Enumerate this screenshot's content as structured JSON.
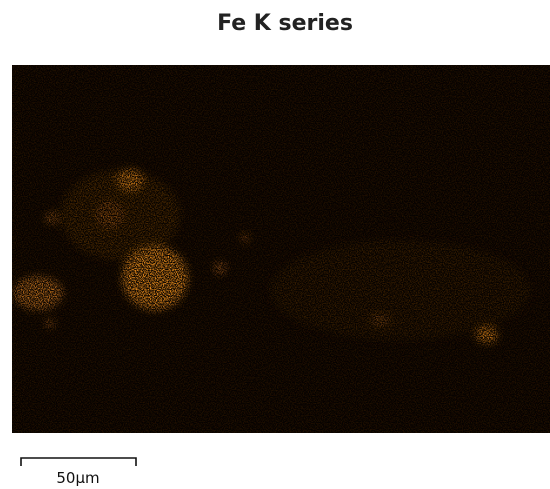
{
  "title": "Fe K series",
  "scale_bar": {
    "label": "50µm"
  }
}
